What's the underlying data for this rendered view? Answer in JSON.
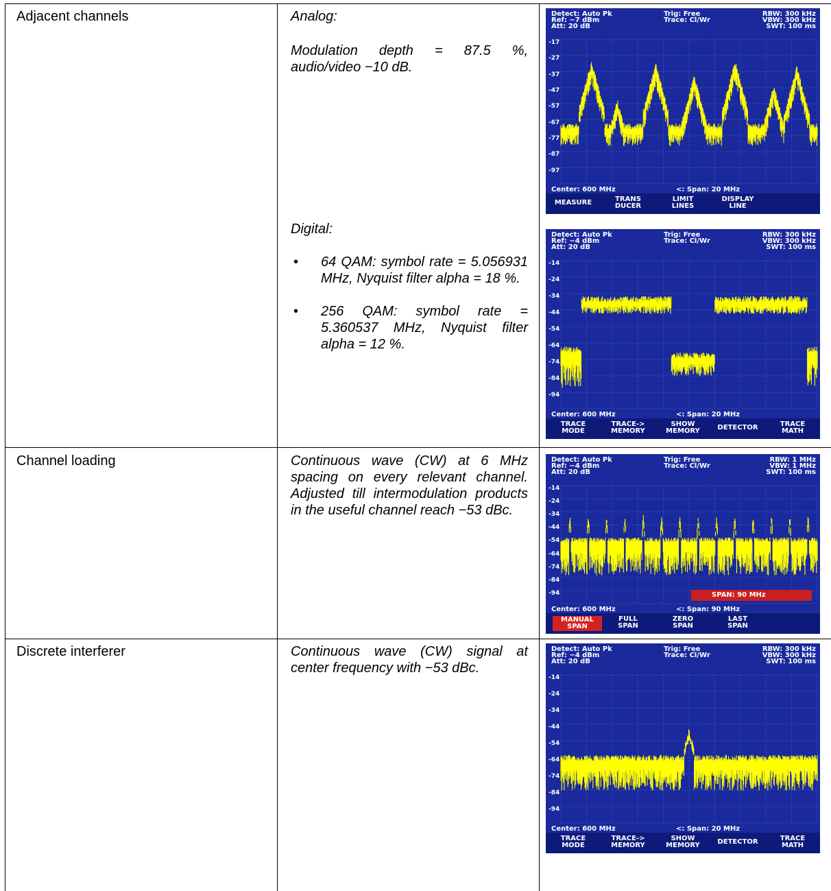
{
  "rows": [
    {
      "label": "Adjacent channels",
      "analog_heading": "Analog:",
      "analog_text": "Modulation depth = 87.5 %, audio/video −10 dB.",
      "digital_heading": "Digital:",
      "digital_bullets": [
        "64 QAM: symbol rate = 5.056931 MHz, Nyquist filter alpha = 18 %.",
        "256 QAM: symbol rate = 5.360537 MHz, Nyquist filter alpha = 12 %."
      ]
    },
    {
      "label": "Channel loading",
      "text": "Continuous wave (CW) at 6 MHz spacing on every relevant channel. Adjusted till intermodulation products in the useful channel reach −53 dBc."
    },
    {
      "label": "Discrete interferer",
      "text": "Continuous wave (CW) signal at center frequency with −53 dBc."
    }
  ],
  "bullet_glyph": "•",
  "screens": [
    {
      "detect": "Detect: Auto Pk",
      "ref": "Ref: −7 dBm",
      "att": "Att: 20 dB",
      "trig": "Trig: Free",
      "trace": "Trace: Cl/Wr",
      "rbw": "RBW: 300 kHz",
      "vbw": "VBW: 300 kHz",
      "swt": "SWT: 100 ms",
      "ylabels": [
        "-17",
        "-27",
        "-37",
        "-47",
        "-57",
        "-67",
        "-77",
        "-87",
        "-97"
      ],
      "center": "Center: 600 MHz",
      "span": "<: Span: 20 MHz",
      "softkeys": [
        "MEASURE",
        "TRANS\nDUCER",
        "LIMIT\nLINES",
        "DISPLAY\nLINE"
      ],
      "active_key": -1,
      "trace_kind": "analog"
    },
    {
      "detect": "Detect: Auto Pk",
      "ref": "Ref: −4 dBm",
      "att": "Att: 20 dB",
      "trig": "Trig: Free",
      "trace": "Trace: Cl/Wr",
      "rbw": "RBW: 300 kHz",
      "vbw": "VBW: 300 kHz",
      "swt": "SWT: 100 ms",
      "ylabels": [
        "-14",
        "-24",
        "-34",
        "-44",
        "-54",
        "-64",
        "-74",
        "-84",
        "-94"
      ],
      "center": "Center: 600 MHz",
      "span": "<: Span: 20 MHz",
      "softkeys": [
        "TRACE\nMODE",
        "TRACE->\nMEMORY",
        "SHOW\nMEMORY",
        "DETECTOR",
        "TRACE\nMATH"
      ],
      "active_key": -1,
      "trace_kind": "digital"
    },
    {
      "detect": "Detect: Auto Pk",
      "ref": "Ref: −4 dBm",
      "att": "Att: 20 dB",
      "trig": "Trig: Free",
      "trace": "Trace: Cl/Wr",
      "rbw": "RBW: 1 MHz",
      "vbw": "VBW: 1 MHz",
      "swt": "SWT: 100 ms",
      "ylabels": [
        "-14",
        "-24",
        "-34",
        "-44",
        "-54",
        "-64",
        "-74",
        "-84",
        "-94"
      ],
      "center": "Center: 600 MHz",
      "span": "<: Span: 90 MHz",
      "span_entry": "SPAN: 90 MHz",
      "softkeys": [
        "MANUAL\nSPAN",
        "FULL\nSPAN",
        "ZERO\nSPAN",
        "LAST\nSPAN"
      ],
      "active_key": 0,
      "trace_kind": "comb"
    },
    {
      "detect": "Detect: Auto Pk",
      "ref": "Ref: −4 dBm",
      "att": "Att: 20 dB",
      "trig": "Trig: Free",
      "trace": "Trace: Cl/Wr",
      "rbw": "RBW: 300 kHz",
      "vbw": "VBW: 300 kHz",
      "swt": "SWT: 100 ms",
      "ylabels": [
        "-14",
        "-24",
        "-34",
        "-44",
        "-54",
        "-64",
        "-74",
        "-84",
        "-94"
      ],
      "center": "Center: 600 MHz",
      "span": "<: Span: 20 MHz",
      "softkeys": [
        "TRACE\nMODE",
        "TRACE->\nMEMORY",
        "SHOW\nMEMORY",
        "DETECTOR",
        "TRACE\nMATH"
      ],
      "active_key": -1,
      "trace_kind": "cw"
    }
  ],
  "colors": {
    "screen_bg": "#1a2a9c",
    "grid": "#3a4cc0",
    "trace": "#ffff00",
    "softkey_active": "#d42222"
  }
}
